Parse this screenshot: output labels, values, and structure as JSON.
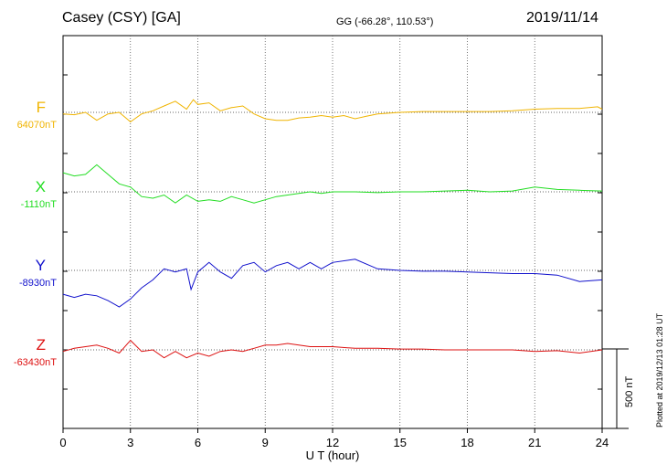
{
  "header": {
    "station": "Casey (CSY)  [GA]",
    "coords": "GG (-66.28°, 110.53°)",
    "date": "2019/11/14"
  },
  "plotted_note": "Plotted at 2019/12/13 01:28 UT",
  "chart_data": {
    "type": "line",
    "xlabel": "U T (hour)",
    "xlim": [
      0,
      24
    ],
    "xticks": [
      "0",
      "3",
      "6",
      "9",
      "12",
      "15",
      "18",
      "21",
      "24"
    ],
    "scale_bar": {
      "label": "500 nT",
      "value_nT": 500
    },
    "series": [
      {
        "name": "F",
        "baseline_label": "64070nT",
        "baseline_nT": 64070,
        "color": "#f0b400",
        "points": [
          [
            0,
            64060
          ],
          [
            0.5,
            64055
          ],
          [
            1,
            64070
          ],
          [
            1.5,
            64020
          ],
          [
            2,
            64060
          ],
          [
            2.5,
            64070
          ],
          [
            3,
            64010
          ],
          [
            3.5,
            64060
          ],
          [
            4,
            64080
          ],
          [
            4.5,
            64110
          ],
          [
            5,
            64140
          ],
          [
            5.5,
            64090
          ],
          [
            5.8,
            64150
          ],
          [
            6,
            64120
          ],
          [
            6.5,
            64130
          ],
          [
            7,
            64080
          ],
          [
            7.5,
            64100
          ],
          [
            8,
            64110
          ],
          [
            8.5,
            64060
          ],
          [
            9,
            64030
          ],
          [
            9.5,
            64020
          ],
          [
            10,
            64020
          ],
          [
            10.5,
            64035
          ],
          [
            11,
            64040
          ],
          [
            11.5,
            64050
          ],
          [
            12,
            64040
          ],
          [
            12.5,
            64050
          ],
          [
            13,
            64030
          ],
          [
            13.5,
            64045
          ],
          [
            14,
            64060
          ],
          [
            15,
            64070
          ],
          [
            16,
            64075
          ],
          [
            17,
            64075
          ],
          [
            18,
            64075
          ],
          [
            19,
            64075
          ],
          [
            20,
            64080
          ],
          [
            21,
            64090
          ],
          [
            22,
            64095
          ],
          [
            23,
            64095
          ],
          [
            23.8,
            64105
          ],
          [
            24,
            64090
          ]
        ]
      },
      {
        "name": "X",
        "baseline_label": "-1110nT",
        "baseline_nT": -1110,
        "color": "#22dd22",
        "points": [
          [
            0,
            -990
          ],
          [
            0.5,
            -1010
          ],
          [
            1,
            -1000
          ],
          [
            1.5,
            -940
          ],
          [
            2,
            -1000
          ],
          [
            2.5,
            -1060
          ],
          [
            3,
            -1080
          ],
          [
            3.5,
            -1140
          ],
          [
            4,
            -1150
          ],
          [
            4.5,
            -1130
          ],
          [
            5,
            -1180
          ],
          [
            5.5,
            -1130
          ],
          [
            6,
            -1170
          ],
          [
            6.5,
            -1160
          ],
          [
            7,
            -1170
          ],
          [
            7.5,
            -1140
          ],
          [
            8,
            -1160
          ],
          [
            8.5,
            -1180
          ],
          [
            9,
            -1160
          ],
          [
            9.5,
            -1140
          ],
          [
            10,
            -1130
          ],
          [
            10.5,
            -1120
          ],
          [
            11,
            -1110
          ],
          [
            11.5,
            -1120
          ],
          [
            12,
            -1110
          ],
          [
            13,
            -1110
          ],
          [
            14,
            -1115
          ],
          [
            15,
            -1110
          ],
          [
            16,
            -1110
          ],
          [
            17,
            -1105
          ],
          [
            18,
            -1100
          ],
          [
            19,
            -1110
          ],
          [
            20,
            -1105
          ],
          [
            21,
            -1080
          ],
          [
            22,
            -1095
          ],
          [
            23,
            -1100
          ],
          [
            24,
            -1105
          ]
        ]
      },
      {
        "name": "Y",
        "baseline_label": "-8930nT",
        "baseline_nT": -8930,
        "color": "#1111cc",
        "points": [
          [
            0,
            -9080
          ],
          [
            0.5,
            -9100
          ],
          [
            1,
            -9080
          ],
          [
            1.5,
            -9090
          ],
          [
            2,
            -9120
          ],
          [
            2.5,
            -9160
          ],
          [
            3,
            -9110
          ],
          [
            3.5,
            -9040
          ],
          [
            4,
            -8990
          ],
          [
            4.5,
            -8920
          ],
          [
            5,
            -8940
          ],
          [
            5.5,
            -8920
          ],
          [
            5.7,
            -9050
          ],
          [
            6,
            -8940
          ],
          [
            6.5,
            -8880
          ],
          [
            7,
            -8940
          ],
          [
            7.5,
            -8980
          ],
          [
            8,
            -8900
          ],
          [
            8.5,
            -8880
          ],
          [
            9,
            -8940
          ],
          [
            9.5,
            -8900
          ],
          [
            10,
            -8880
          ],
          [
            10.5,
            -8920
          ],
          [
            11,
            -8880
          ],
          [
            11.5,
            -8920
          ],
          [
            12,
            -8880
          ],
          [
            13,
            -8860
          ],
          [
            14,
            -8920
          ],
          [
            15,
            -8930
          ],
          [
            16,
            -8935
          ],
          [
            17,
            -8935
          ],
          [
            18,
            -8940
          ],
          [
            19,
            -8945
          ],
          [
            20,
            -8950
          ],
          [
            21,
            -8950
          ],
          [
            22,
            -8960
          ],
          [
            23,
            -9000
          ],
          [
            24,
            -8990
          ]
        ]
      },
      {
        "name": "Z",
        "baseline_label": "-63430nT",
        "baseline_nT": -63430,
        "color": "#dd1111",
        "points": [
          [
            0,
            -63440
          ],
          [
            0.5,
            -63420
          ],
          [
            1,
            -63410
          ],
          [
            1.5,
            -63400
          ],
          [
            2,
            -63420
          ],
          [
            2.5,
            -63450
          ],
          [
            3,
            -63370
          ],
          [
            3.5,
            -63440
          ],
          [
            4,
            -63430
          ],
          [
            4.5,
            -63480
          ],
          [
            5,
            -63440
          ],
          [
            5.5,
            -63480
          ],
          [
            6,
            -63450
          ],
          [
            6.5,
            -63470
          ],
          [
            7,
            -63440
          ],
          [
            7.5,
            -63430
          ],
          [
            8,
            -63440
          ],
          [
            8.5,
            -63420
          ],
          [
            9,
            -63400
          ],
          [
            9.5,
            -63400
          ],
          [
            10,
            -63390
          ],
          [
            10.5,
            -63400
          ],
          [
            11,
            -63410
          ],
          [
            12,
            -63410
          ],
          [
            13,
            -63420
          ],
          [
            14,
            -63420
          ],
          [
            15,
            -63425
          ],
          [
            16,
            -63425
          ],
          [
            17,
            -63430
          ],
          [
            18,
            -63430
          ],
          [
            19,
            -63430
          ],
          [
            20,
            -63430
          ],
          [
            21,
            -63440
          ],
          [
            22,
            -63435
          ],
          [
            23,
            -63450
          ],
          [
            24,
            -63430
          ]
        ]
      }
    ]
  }
}
